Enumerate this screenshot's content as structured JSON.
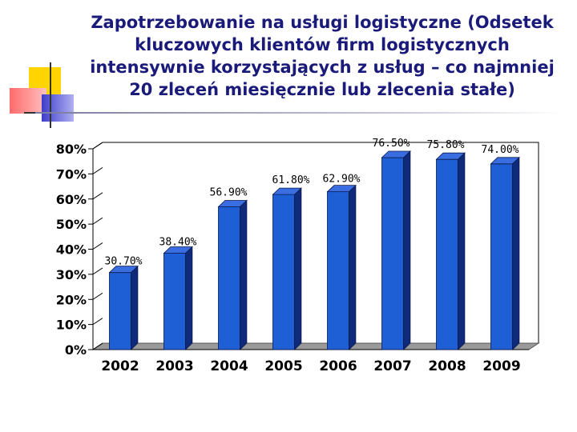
{
  "slide": {
    "title_lines": [
      "Zapotrzebowanie na usługi logistyczne (Odsetek",
      "kluczowych klientów firm logistycznych",
      "intensywnie korzystających z usług – co najmniej",
      "20 zleceń miesięcznie lub zlecenia stałe)"
    ]
  },
  "colors": {
    "bar_front": "#1f5fd6",
    "bar_side": "#0f2a78",
    "bar_top": "#3a6ee0",
    "title": "#1a1a7a",
    "deco_yellow": "#ffd400",
    "deco_red": "#ff6b6b",
    "deco_blue": "#3d3dcc"
  },
  "chart_data": {
    "type": "bar",
    "categories": [
      "2002",
      "2003",
      "2004",
      "2005",
      "2006",
      "2007",
      "2008",
      "2009"
    ],
    "values": [
      30.7,
      38.4,
      56.9,
      61.8,
      62.9,
      76.5,
      75.8,
      74.0
    ],
    "data_labels": [
      "30.70%",
      "38.40%",
      "56.90%",
      "61.80%",
      "62.90%",
      "76.50%",
      "75.80%",
      "74.00%"
    ],
    "ytick_values": [
      0,
      10,
      20,
      30,
      40,
      50,
      60,
      70,
      80
    ],
    "ytick_labels": [
      "0%",
      "10%",
      "20%",
      "30%",
      "40%",
      "50%",
      "60%",
      "70%",
      "80%"
    ],
    "ylim": [
      0,
      80
    ],
    "grid": false,
    "legend": false,
    "style": "3d-column"
  }
}
